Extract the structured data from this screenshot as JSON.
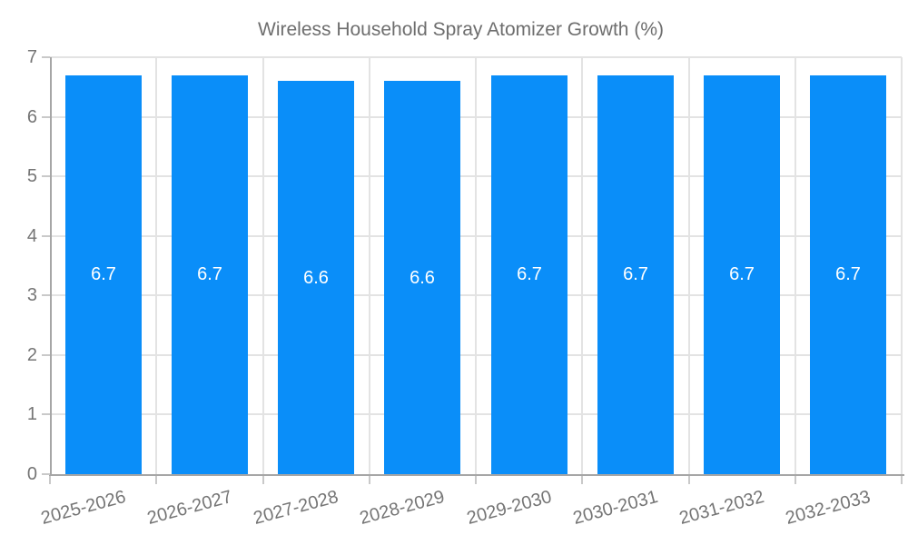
{
  "chart_data": {
    "type": "bar",
    "title": "Wireless Household Spray Atomizer Growth (%)",
    "categories": [
      "2025-2026",
      "2026-2027",
      "2027-2028",
      "2028-2029",
      "2029-2030",
      "2030-2031",
      "2031-2032",
      "2032-2033"
    ],
    "values": [
      6.7,
      6.7,
      6.6,
      6.6,
      6.7,
      6.7,
      6.7,
      6.7
    ],
    "value_labels": [
      "6.7",
      "6.7",
      "6.6",
      "6.6",
      "6.7",
      "6.7",
      "6.7",
      "6.7"
    ],
    "series": [
      {
        "name": "Wireless Household Spray Atomizer Growth (%)",
        "values": [
          6.7,
          6.7,
          6.6,
          6.6,
          6.7,
          6.7,
          6.7,
          6.7
        ]
      }
    ],
    "xlabel": "",
    "ylabel": "",
    "ylim": [
      0,
      7
    ],
    "ytick_step": 1,
    "ytick_labels": [
      "0",
      "1",
      "2",
      "3",
      "4",
      "5",
      "6",
      "7"
    ],
    "grid": true,
    "legend_position": "top",
    "colors": {
      "bar": "#0A8EF9",
      "grid": "#E3E3E3",
      "axis": "#A6A6A6",
      "tick": "#C9C9C9",
      "axis_text": "#757575",
      "value_text": "#FFFFFF",
      "legend_text": "#6E6E6E"
    }
  }
}
